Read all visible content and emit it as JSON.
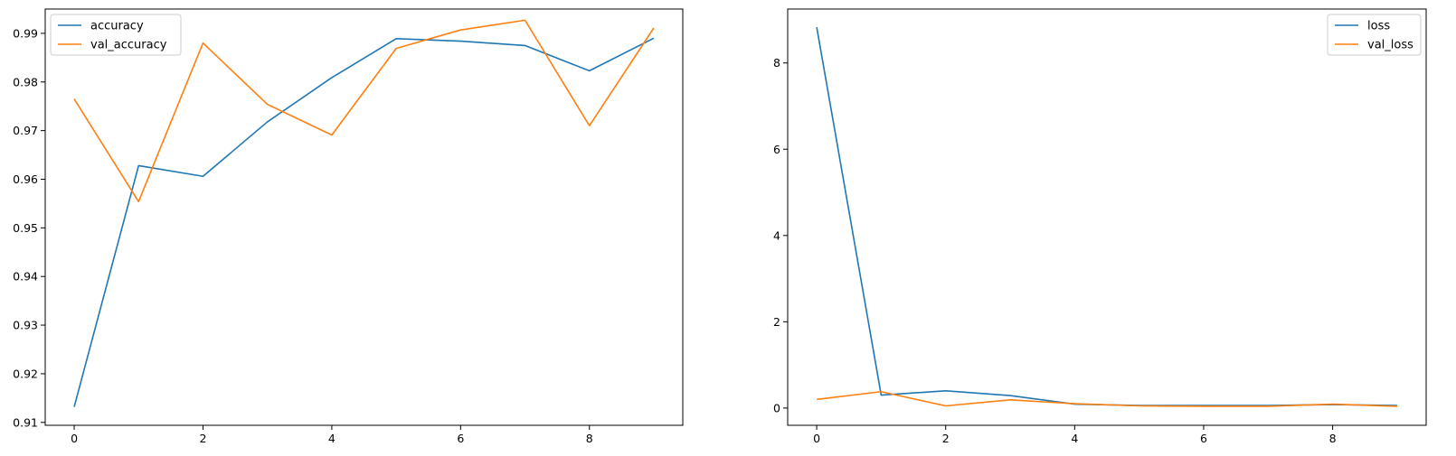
{
  "chart_data": [
    {
      "type": "line",
      "x": [
        0,
        1,
        2,
        3,
        4,
        5,
        6,
        7,
        8,
        9
      ],
      "series": [
        {
          "name": "accuracy",
          "color": "#1f77b4",
          "values": [
            0.9132,
            0.9628,
            0.9606,
            0.9718,
            0.9809,
            0.9889,
            0.9884,
            0.9875,
            0.9823,
            0.989
          ]
        },
        {
          "name": "val_accuracy",
          "color": "#ff7f0e",
          "values": [
            0.9765,
            0.9554,
            0.988,
            0.9754,
            0.9691,
            0.9869,
            0.9907,
            0.9927,
            0.971,
            0.9911
          ]
        }
      ],
      "xlim": [
        -0.45,
        9.45
      ],
      "ylim": [
        0.9094,
        0.995
      ],
      "xticks": [
        0,
        2,
        4,
        6,
        8
      ],
      "yticks": [
        0.91,
        0.92,
        0.93,
        0.94,
        0.95,
        0.96,
        0.97,
        0.98,
        0.99
      ],
      "yticklabels": [
        "0.91",
        "0.92",
        "0.93",
        "0.94",
        "0.95",
        "0.96",
        "0.97",
        "0.98",
        "0.99"
      ],
      "title": "",
      "xlabel": "",
      "ylabel": "",
      "legend": "upper-left",
      "grid": false
    },
    {
      "type": "line",
      "x": [
        0,
        1,
        2,
        3,
        4,
        5,
        6,
        7,
        8,
        9
      ],
      "series": [
        {
          "name": "loss",
          "color": "#1f77b4",
          "values": [
            8.83,
            0.3,
            0.4,
            0.29,
            0.09,
            0.06,
            0.06,
            0.06,
            0.08,
            0.06
          ]
        },
        {
          "name": "val_loss",
          "color": "#ff7f0e",
          "values": [
            0.2,
            0.38,
            0.05,
            0.19,
            0.1,
            0.05,
            0.04,
            0.04,
            0.09,
            0.04
          ]
        }
      ],
      "xlim": [
        -0.45,
        9.45
      ],
      "ylim": [
        -0.4,
        9.25
      ],
      "xticks": [
        0,
        2,
        4,
        6,
        8
      ],
      "yticks": [
        0,
        2,
        4,
        6,
        8
      ],
      "yticklabels": [
        "0",
        "2",
        "4",
        "6",
        "8"
      ],
      "title": "",
      "xlabel": "",
      "ylabel": "",
      "legend": "upper-right",
      "grid": false
    }
  ]
}
